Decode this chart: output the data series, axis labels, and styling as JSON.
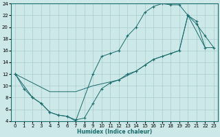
{
  "xlabel": "Humidex (Indice chaleur)",
  "bg_color": "#cce8e8",
  "line_color": "#1a6b6b",
  "grid_color": "#aacccc",
  "xlim": [
    -0.5,
    23.5
  ],
  "ylim": [
    4,
    24
  ],
  "xticks": [
    0,
    1,
    2,
    3,
    4,
    5,
    6,
    7,
    8,
    9,
    10,
    11,
    12,
    13,
    14,
    15,
    16,
    17,
    18,
    19,
    20,
    21,
    22,
    23
  ],
  "yticks": [
    4,
    6,
    8,
    10,
    12,
    14,
    16,
    18,
    20,
    22,
    24
  ],
  "line1_x": [
    0,
    1,
    2,
    3,
    4,
    5,
    6,
    7,
    9,
    10,
    11,
    12,
    13,
    14,
    15,
    16,
    17,
    18,
    19,
    20,
    21,
    22,
    23
  ],
  "line1_y": [
    12,
    9.5,
    8,
    7,
    5.5,
    5,
    4.8,
    4,
    12,
    15,
    15.5,
    16,
    18.5,
    20,
    22.5,
    23.5,
    24,
    23.8,
    23.8,
    22,
    20.5,
    18.5,
    16.5
  ],
  "line2_x": [
    0,
    2,
    3,
    4,
    5,
    6,
    7,
    8,
    9,
    10,
    11,
    12,
    13,
    14,
    15,
    16,
    17,
    18,
    19,
    20,
    21,
    22,
    23
  ],
  "line2_y": [
    12,
    8,
    7,
    5.5,
    5,
    4.8,
    4.2,
    4.5,
    7,
    9.5,
    10.5,
    11,
    12,
    12.5,
    13.5,
    14.5,
    15,
    15.5,
    16,
    22,
    21,
    16.5,
    null
  ],
  "line3_x": [
    0,
    4,
    7,
    9,
    12,
    14,
    16,
    18,
    19,
    20,
    22,
    23
  ],
  "line3_y": [
    12,
    9,
    9,
    10,
    11,
    12.5,
    14.5,
    15.5,
    16,
    22,
    16.5,
    16.5
  ]
}
